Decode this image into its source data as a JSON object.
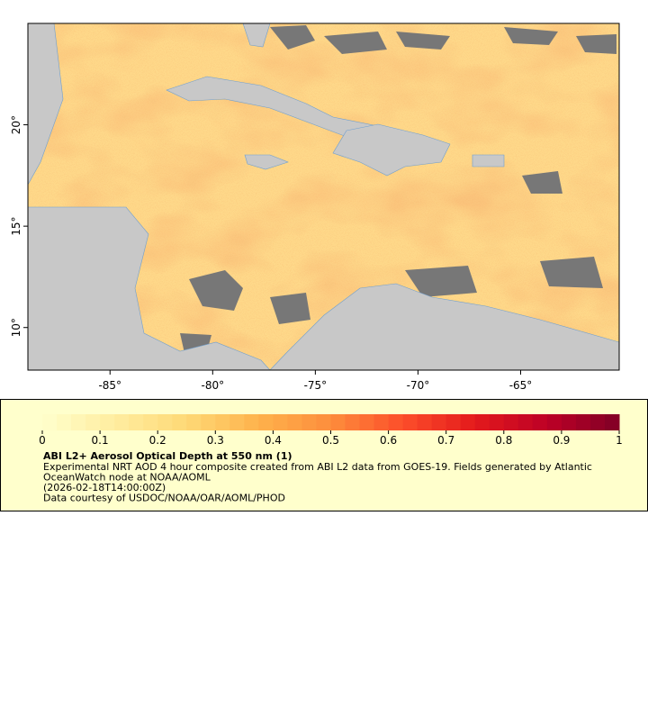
{
  "map": {
    "xlim": [
      -89,
      -60.2
    ],
    "ylim": [
      7.9,
      25
    ],
    "xticks": [
      {
        "value": -85,
        "label": "-85°"
      },
      {
        "value": -80,
        "label": "-80°"
      },
      {
        "value": -75,
        "label": "-75°"
      },
      {
        "value": -70,
        "label": "-70°"
      },
      {
        "value": -65,
        "label": "-65°"
      }
    ],
    "yticks": [
      {
        "value": 10,
        "label": "10°"
      },
      {
        "value": 15,
        "label": "15°"
      },
      {
        "value": 20,
        "label": "20°"
      }
    ]
  },
  "legend": {
    "colorbar": {
      "range": [
        0,
        1
      ],
      "ticks": [
        0,
        0.1,
        0.2,
        0.3,
        0.4,
        0.5,
        0.6,
        0.7,
        0.8,
        0.9,
        1
      ],
      "colors": [
        "#ffffcc",
        "#ffeda0",
        "#fed976",
        "#feb24c",
        "#fd8d3c",
        "#fc4e2a",
        "#e31a1c",
        "#bd0026",
        "#800026"
      ]
    },
    "title": "ABI L2+ Aerosol Optical Depth at 550 nm (1)",
    "lines": [
      "Experimental NRT AOD 4 hour composite created from ABI L2 data from GOES-19. Fields generated by Atlantic",
      "OceanWatch node at NOAA/AOML",
      "(2026-02-18T14:00:00Z)",
      "Data courtesy of USDOC/NOAA/OAR/AOML/PHOD"
    ]
  }
}
